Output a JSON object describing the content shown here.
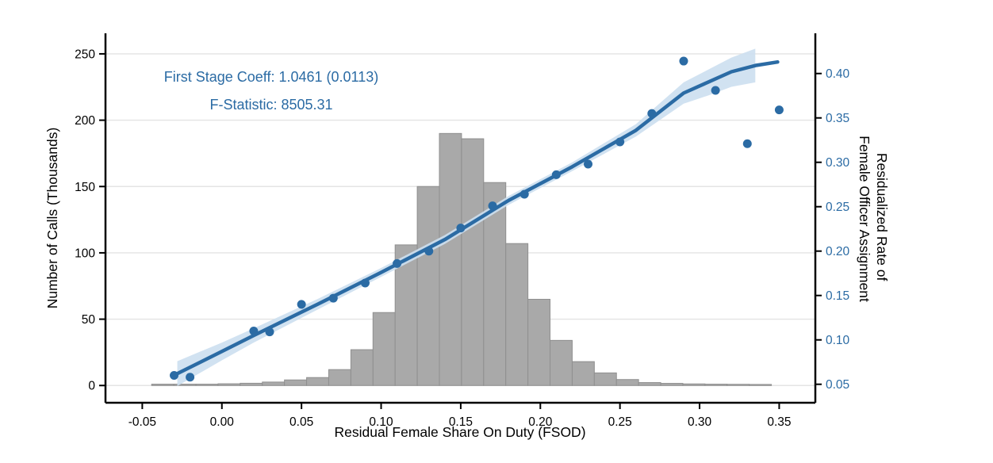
{
  "colors": {
    "blue": "#2b6ba4",
    "band_fill": "#ccdff0",
    "bar_fill": "#a9a9a9",
    "bar_stroke": "#8f8f8f",
    "grid": "#e4e4e4",
    "axis": "#000000",
    "background": "#ffffff"
  },
  "annotation": {
    "line1": "First Stage Coeff: 1.0461 (0.0113)",
    "line2": "F-Statistic: 8505.31"
  },
  "chart_data": {
    "type": [
      "histogram",
      "scatter",
      "line",
      "area"
    ],
    "title": "",
    "xlabel": "Residual Female Share On Duty (FSOD)",
    "ylabel_left": "Number of Calls (Thousands)",
    "ylabel_right_line1": "Residualized Rate of",
    "ylabel_right_line2": "Female Officer Assignment",
    "xlim": [
      -0.0731,
      0.3727
    ],
    "ylim_left": [
      -13,
      265.5
    ],
    "ylim_right": [
      0.0292,
      0.4453
    ],
    "grid": "horizontal-only",
    "legend": "none",
    "x_tick_values": [
      -0.05,
      0.0,
      0.05,
      0.1,
      0.15,
      0.2,
      0.25,
      0.3,
      0.35
    ],
    "x_tick_labels": [
      "-0.05",
      "0.00",
      "0.05",
      "0.10",
      "0.15",
      "0.20",
      "0.25",
      "0.30",
      "0.35"
    ],
    "y_left_tick_values": [
      0,
      50,
      100,
      150,
      200,
      250
    ],
    "y_left_tick_labels": [
      "0",
      "50",
      "100",
      "150",
      "200",
      "250"
    ],
    "y_right_tick_values": [
      0.05,
      0.1,
      0.15,
      0.2,
      0.25,
      0.3,
      0.35,
      0.4
    ],
    "y_right_tick_labels": [
      "0.05",
      "0.10",
      "0.15",
      "0.20",
      "0.25",
      "0.30",
      "0.35",
      "0.40"
    ],
    "histogram": {
      "bin_start": -0.0441,
      "bin_width": 0.0139,
      "counts": [
        1,
        1,
        1,
        1.3,
        1.7,
        2.6,
        4.2,
        6,
        12,
        27,
        55,
        106,
        150,
        190,
        186,
        153,
        107,
        65,
        34,
        18,
        9.5,
        4.5,
        2.2,
        1.6,
        1.2,
        1,
        0.9,
        0.8
      ]
    },
    "scatter": {
      "x": [
        -0.03,
        -0.02,
        0.02,
        0.03,
        0.05,
        0.07,
        0.09,
        0.11,
        0.13,
        0.15,
        0.17,
        0.19,
        0.21,
        0.23,
        0.25,
        0.27,
        0.29,
        0.31,
        0.33,
        0.35
      ],
      "y": [
        0.06,
        0.058,
        0.11,
        0.109,
        0.14,
        0.147,
        0.164,
        0.186,
        0.2,
        0.226,
        0.251,
        0.264,
        0.286,
        0.298,
        0.323,
        0.355,
        0.414,
        0.381,
        0.321,
        0.359
      ]
    },
    "fit_line": {
      "x": [
        -0.028,
        0.0,
        0.02,
        0.06,
        0.1,
        0.14,
        0.18,
        0.22,
        0.26,
        0.29,
        0.305,
        0.32,
        0.335,
        0.349
      ],
      "y": [
        0.062,
        0.087,
        0.105,
        0.14,
        0.176,
        0.213,
        0.257,
        0.295,
        0.336,
        0.378,
        0.39,
        0.402,
        0.409,
        0.413
      ]
    },
    "ci_band": {
      "x": [
        -0.028,
        0.0,
        0.02,
        0.06,
        0.1,
        0.14,
        0.18,
        0.22,
        0.26,
        0.29,
        0.305,
        0.32,
        0.335
      ],
      "lower": [
        0.048,
        0.077,
        0.097,
        0.134,
        0.171,
        0.208,
        0.252,
        0.29,
        0.329,
        0.366,
        0.375,
        0.385,
        0.39
      ],
      "upper": [
        0.076,
        0.097,
        0.113,
        0.146,
        0.181,
        0.218,
        0.262,
        0.3,
        0.343,
        0.39,
        0.404,
        0.418,
        0.428
      ]
    }
  }
}
